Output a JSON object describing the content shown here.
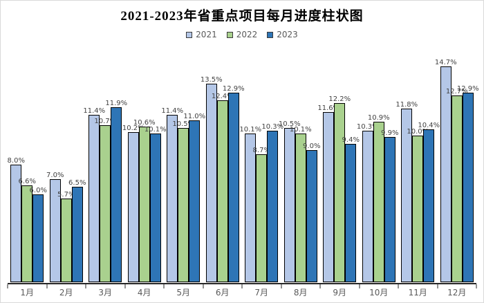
{
  "window": {
    "background": "#ffffff",
    "border_color": "#d9d9d9"
  },
  "chart_data": {
    "type": "bar",
    "title": "2021-2023年省重点项目每月进度柱状图",
    "xlabel": "",
    "ylabel": "",
    "ylim": [
      0,
      15
    ],
    "grid": false,
    "legend_position": "top",
    "data_labels": true,
    "value_suffix": "%",
    "categories": [
      "1月",
      "2月",
      "3月",
      "4月",
      "5月",
      "6月",
      "7月",
      "8月",
      "9月",
      "10月",
      "11月",
      "12月"
    ],
    "series": [
      {
        "name": "2021",
        "color": "#B4C7E7",
        "values": [
          8.0,
          7.0,
          11.4,
          10.2,
          11.4,
          13.5,
          10.1,
          10.5,
          11.6,
          10.3,
          11.8,
          14.7
        ]
      },
      {
        "name": "2022",
        "color": "#A9D18E",
        "values": [
          6.6,
          5.7,
          10.7,
          10.6,
          10.5,
          12.4,
          8.7,
          10.1,
          12.2,
          10.9,
          10.0,
          12.7
        ]
      },
      {
        "name": "2023",
        "color": "#2E75B6",
        "values": [
          6.0,
          6.5,
          11.9,
          10.1,
          11.0,
          12.9,
          10.3,
          9.0,
          9.4,
          9.9,
          10.4,
          12.9
        ]
      }
    ],
    "bar_border_color": "#000000",
    "axis_color": "#262626",
    "data_label_color": "#404040",
    "axis_label_color": "#595959",
    "legend_text_color": "#595959"
  }
}
